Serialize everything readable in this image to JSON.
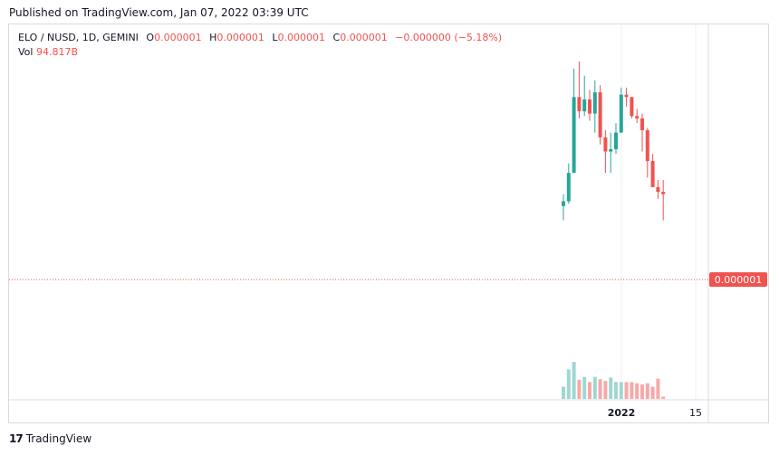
{
  "header": {
    "published": "Published on TradingView.com, Jan 07, 2022 03:39 UTC"
  },
  "legend": {
    "symbol": "ELO / NUSD, 1D, GEMINI",
    "o_label": "O",
    "o_value": "0.000001",
    "h_label": "H",
    "h_value": "0.000001",
    "l_label": "L",
    "l_value": "0.000001",
    "c_label": "C",
    "c_value": "0.000001",
    "change": "−0.000000 (−5.18%)",
    "vol_label": "Vol",
    "vol_value": "94.817B"
  },
  "price_label": "0.000001",
  "footer": {
    "logo_glyph": "17",
    "brand": "TradingView"
  },
  "colors": {
    "up": "#26a69a",
    "down": "#ef5350",
    "vol_up": "#9fd7d2",
    "vol_down": "#f6a9a7",
    "price_line": "#ef5350",
    "grid": "#eef0f3"
  },
  "chart_data": {
    "type": "candlestick",
    "xaxis_ticks": [
      {
        "label": "2022",
        "index": 11.6
      },
      {
        "label": "15",
        "index": 25
      }
    ],
    "ohlc_relative": [
      {
        "o": 39,
        "h": 44,
        "l": 33,
        "c": 41,
        "v": 21
      },
      {
        "o": 41,
        "h": 57,
        "l": 40,
        "c": 53,
        "v": 51
      },
      {
        "o": 53,
        "h": 97,
        "l": 56,
        "c": 85,
        "v": 64
      },
      {
        "o": 85,
        "h": 100,
        "l": 76,
        "c": 79,
        "v": 33
      },
      {
        "o": 79,
        "h": 94,
        "l": 77,
        "c": 84,
        "v": 38
      },
      {
        "o": 84,
        "h": 88,
        "l": 75,
        "c": 78,
        "v": 29
      },
      {
        "o": 78,
        "h": 92,
        "l": 70,
        "c": 87,
        "v": 38
      },
      {
        "o": 87,
        "h": 90,
        "l": 65,
        "c": 68,
        "v": 34
      },
      {
        "o": 68,
        "h": 71,
        "l": 53,
        "c": 62,
        "v": 31
      },
      {
        "o": 62,
        "h": 70,
        "l": 53,
        "c": 63,
        "v": 37
      },
      {
        "o": 63,
        "h": 74,
        "l": 61,
        "c": 70,
        "v": 29
      },
      {
        "o": 70,
        "h": 89,
        "l": 72,
        "c": 86,
        "v": 29
      },
      {
        "o": 86,
        "h": 89,
        "l": 81,
        "c": 85,
        "v": 29
      },
      {
        "o": 85,
        "h": 82,
        "l": 76,
        "c": 77,
        "v": 29
      },
      {
        "o": 77,
        "h": 80,
        "l": 74,
        "c": 76,
        "v": 27
      },
      {
        "o": 76,
        "h": 78,
        "l": 62,
        "c": 71,
        "v": 25
      },
      {
        "o": 71,
        "h": 72,
        "l": 51,
        "c": 58,
        "v": 27
      },
      {
        "o": 58,
        "h": 61,
        "l": 47,
        "c": 47,
        "v": 21
      },
      {
        "o": 47,
        "h": 50,
        "l": 42,
        "c": 45,
        "v": 35
      },
      {
        "o": 45,
        "h": 50,
        "l": 33,
        "c": 44,
        "v": 4
      }
    ]
  }
}
